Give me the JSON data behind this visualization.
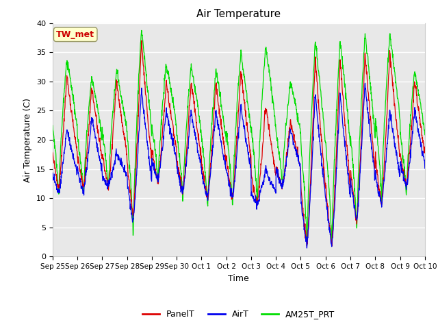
{
  "title": "Air Temperature",
  "ylabel": "Air Temperature (C)",
  "xlabel": "Time",
  "ylim": [
    0,
    40
  ],
  "fig_background": "#ffffff",
  "plot_background": "#e8e8e8",
  "annotation_text": "TW_met",
  "annotation_color": "#cc0000",
  "annotation_bg": "#ffffcc",
  "annotation_border": "#999966",
  "series_colors": [
    "#dd0000",
    "#0000ee",
    "#00dd00"
  ],
  "series_labels": [
    "PanelT",
    "AirT",
    "AM25T_PRT"
  ],
  "x_tick_labels": [
    "Sep 25",
    "Sep 26",
    "Sep 27",
    "Sep 28",
    "Sep 29",
    "Sep 30",
    "Oct 1",
    "Oct 2",
    "Oct 3",
    "Oct 4",
    "Oct 5",
    "Oct 6",
    "Oct 7",
    "Oct 8",
    "Oct 9",
    "Oct 10"
  ],
  "yticks": [
    0,
    5,
    10,
    15,
    20,
    25,
    30,
    35,
    40
  ],
  "n_days": 15,
  "pts_per_day": 96
}
